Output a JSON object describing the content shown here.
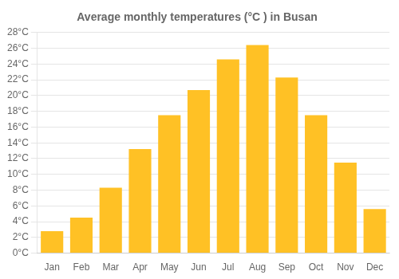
{
  "chart_data": {
    "type": "bar",
    "title": "Average monthly temperatures (°C ) in Busan",
    "categories": [
      "Jan",
      "Feb",
      "Mar",
      "Apr",
      "May",
      "Jun",
      "Jul",
      "Aug",
      "Sep",
      "Oct",
      "Nov",
      "Dec"
    ],
    "values": [
      2.8,
      4.5,
      8.3,
      13.2,
      17.5,
      20.7,
      24.6,
      26.4,
      22.3,
      17.5,
      11.5,
      5.6
    ],
    "color": "#FFC125",
    "ylim": [
      0,
      28
    ],
    "yticks": [
      {
        "value": 0,
        "label": "0°C"
      },
      {
        "value": 2,
        "label": "2°C"
      },
      {
        "value": 4,
        "label": "4°C"
      },
      {
        "value": 6,
        "label": "6°C"
      },
      {
        "value": 8,
        "label": "8°C"
      },
      {
        "value": 10,
        "label": "10°C"
      },
      {
        "value": 12,
        "label": "12°C"
      },
      {
        "value": 14,
        "label": "14°C"
      },
      {
        "value": 16,
        "label": "16°C"
      },
      {
        "value": 18,
        "label": "18°C"
      },
      {
        "value": 20,
        "label": "20°C"
      },
      {
        "value": 22,
        "label": "22°C"
      },
      {
        "value": 24,
        "label": "24°C"
      },
      {
        "value": 26,
        "label": "26°C"
      },
      {
        "value": 28,
        "label": "28°C"
      }
    ],
    "grid": true
  }
}
